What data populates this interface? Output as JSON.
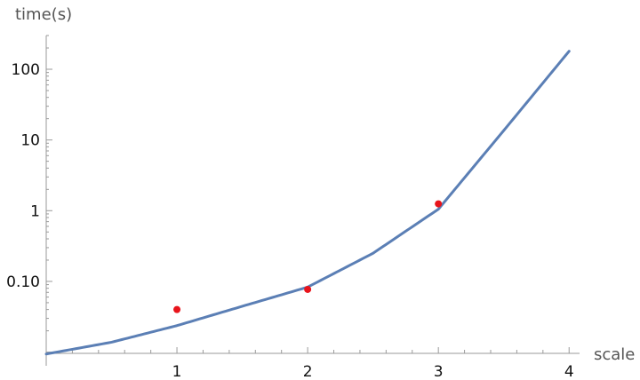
{
  "chart_data": {
    "type": "scatter",
    "title": "",
    "xlabel": "scale",
    "ylabel": "time(s)",
    "x_scale": "linear",
    "y_scale": "log",
    "xlim": [
      0,
      4.08
    ],
    "ylim": [
      0.0096,
      300
    ],
    "x_ticks": [
      {
        "value": 1,
        "label": "1"
      },
      {
        "value": 2,
        "label": "2"
      },
      {
        "value": 3,
        "label": "3"
      },
      {
        "value": 4,
        "label": "4"
      }
    ],
    "y_ticks": [
      {
        "value": 0.1,
        "label": "0.10"
      },
      {
        "value": 1,
        "label": "1"
      },
      {
        "value": 10,
        "label": "10"
      },
      {
        "value": 100,
        "label": "100"
      }
    ],
    "grid": false,
    "series": [
      {
        "kind": "line",
        "color": "#5b7fb5",
        "x": [
          0,
          0.5,
          1,
          1.5,
          2,
          2.5,
          3,
          3.5,
          4
        ],
        "values": [
          0.0094,
          0.0138,
          0.0237,
          0.0445,
          0.083,
          0.25,
          1.05,
          13.6,
          180
        ]
      },
      {
        "kind": "points",
        "color": "#e8141b",
        "x": [
          1,
          2,
          3
        ],
        "values": [
          0.04,
          0.077,
          1.25
        ]
      }
    ]
  }
}
